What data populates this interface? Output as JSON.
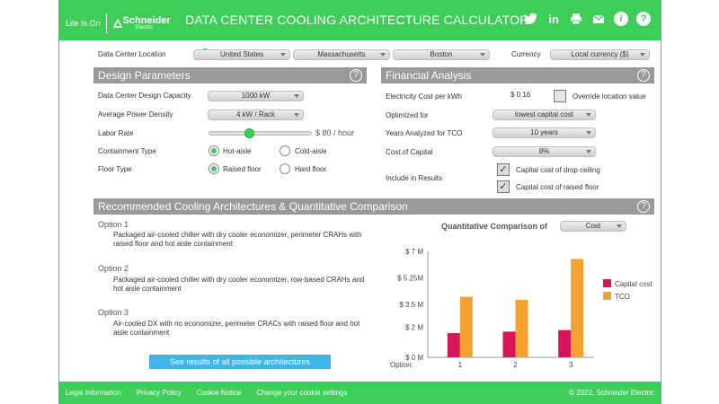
{
  "brand": {
    "tagline": "Life Is On",
    "logo_name": "Schneider",
    "logo_sub": "Electric"
  },
  "header": {
    "title": "DATA CENTER COOLING ARCHITECTURE CALCULATOR",
    "icons": [
      "twitter-icon",
      "linkedin-icon",
      "print-icon",
      "email-icon",
      "info-icon",
      "help-icon"
    ]
  },
  "location": {
    "label": "Data Center Location",
    "country": "United States",
    "state": "Massachusetts",
    "city": "Boston",
    "currency_label": "Currency",
    "currency": "Local currency ($)"
  },
  "design": {
    "title": "Design Parameters",
    "capacity_label": "Data Center Design Capacity",
    "capacity_value": "1000 kW",
    "density_label": "Average Power Density",
    "density_value": "4 kW / Rack",
    "labor_label": "Labor Rate",
    "labor_value": "$ 80 / hour",
    "labor_level": 0.38,
    "containment_label": "Containment Type",
    "containment_options": [
      "Hot-aisle",
      "Cold-aisle"
    ],
    "containment_selected": 0,
    "floor_label": "Floor Type",
    "floor_options": [
      "Raised floor",
      "Hard floor"
    ],
    "floor_selected": 0
  },
  "financial": {
    "title": "Financial Analysis",
    "elec_label": "Electricity Cost per kWh",
    "elec_value": "$ 0.16",
    "override_label": "Override location value",
    "optimized_label": "Optimized for",
    "optimized_value": "lowest capital cost",
    "years_label": "Years Analyzed for TCO",
    "years_value": "10 years",
    "capital_label": "Cost of Capital",
    "capital_value": "8%",
    "include_label": "Include in Results",
    "include_options": [
      "Capital cost of drop ceiling",
      "Capital cost of raised floor"
    ]
  },
  "recommended": {
    "title": "Recommended Cooling Architectures & Quantitative Comparison",
    "options": [
      {
        "title": "Option 1",
        "desc": "Packaged air-cooled chiller with dry cooler economizer, perimeter CRAHs with raised floor and hot aisle containment"
      },
      {
        "title": "Option 2",
        "desc": "Packaged air-cooled chiller with dry cooler economizer, row-based CRAHs and hot aisle containment"
      },
      {
        "title": "Option 3",
        "desc": "Air-cooled DX with no economizer, perimeter CRACs with raised floor and hot aisle containment"
      }
    ],
    "see_all": "See results of all possible architectures",
    "comparison_label": "Quantitative Comparison of",
    "comparison_value": "Cost"
  },
  "footer": {
    "links": [
      "Legal Information",
      "Privacy Policy",
      "Cookie Notice",
      "Change your cookie settings"
    ],
    "copyright": "© 2022, Schneider Electric"
  },
  "colors": {
    "brand_green": "#3dcd58",
    "panel_gray": "#999999",
    "capital": "#d8145a",
    "tco": "#f6a12f",
    "button_blue": "#42b4e6"
  },
  "chart_data": {
    "type": "bar",
    "x_label": "Option:",
    "categories": [
      "1",
      "2",
      "3"
    ],
    "y_ticks": [
      "$ 0 M",
      "$ 2 M",
      "$ 3.5 M",
      "$ 5.25M",
      "$ 7 M"
    ],
    "ylim": [
      0,
      7
    ],
    "legend_placement": "right",
    "series": [
      {
        "name": "Capital cost",
        "color": "#d8145a",
        "values": [
          1.6,
          1.7,
          1.8
        ]
      },
      {
        "name": "TCO",
        "color": "#f6a12f",
        "values": [
          4.0,
          3.8,
          6.5
        ]
      }
    ]
  }
}
